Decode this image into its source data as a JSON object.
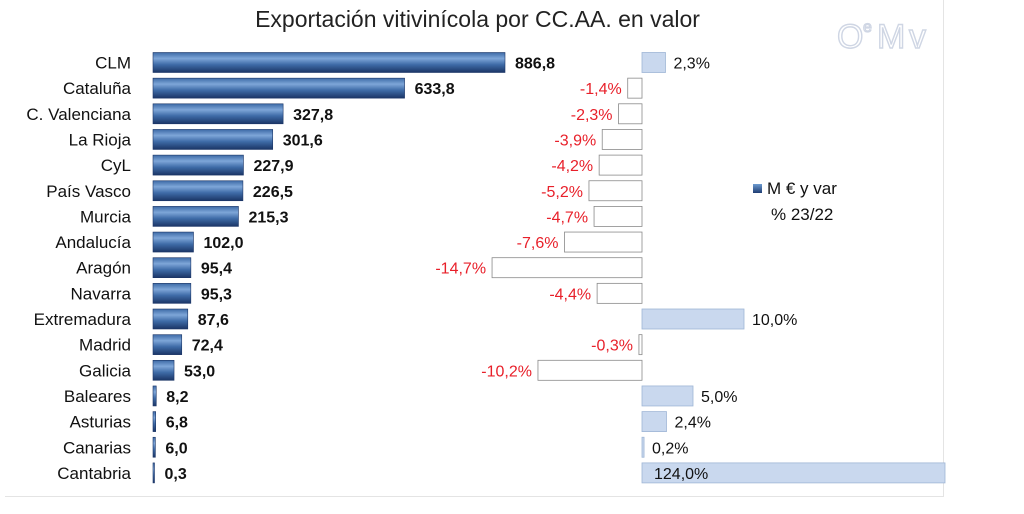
{
  "chart_data": {
    "type": "bar",
    "title": "Exportación vitivinícola por CC.AA. en valor",
    "categories": [
      "CLM",
      "Cataluña",
      "C. Valenciana",
      "La Rioja",
      "CyL",
      "País Vasco",
      "Murcia",
      "Andalucía",
      "Aragón",
      "Navarra",
      "Extremadura",
      "Madrid",
      "Galicia",
      "Baleares",
      "Asturias",
      "Canarias",
      "Cantabria"
    ],
    "series": [
      {
        "values": [
          886.8,
          633.8,
          327.8,
          301.6,
          227.9,
          226.5,
          215.3,
          102.0,
          95.4,
          95.3,
          87.6,
          72.4,
          53.0,
          8.2,
          6.8,
          6.0,
          0.3
        ],
        "labels": [
          "886,8",
          "633,8",
          "327,8",
          "301,6",
          "227,9",
          "226,5",
          "215,3",
          "102,0",
          "95,4",
          "95,3",
          "87,6",
          "72,4",
          "53,0",
          "8,2",
          "6,8",
          "6,0",
          "0,3"
        ]
      },
      {
        "values": [
          2.3,
          -1.4,
          -2.3,
          -3.9,
          -4.2,
          -5.2,
          -4.7,
          -7.6,
          -14.7,
          -4.4,
          10.0,
          -0.3,
          -10.2,
          5.0,
          2.4,
          0.2,
          124.0
        ],
        "labels": [
          "2,3%",
          "-1,4%",
          "-2,3%",
          "-3,9%",
          "-4,2%",
          "-5,2%",
          "-4,7%",
          "-7,6%",
          "-14,7%",
          "-4,4%",
          "10,0%",
          "-0,3%",
          "-10,2%",
          "5,0%",
          "2,4%",
          "0,2%",
          "124,0%"
        ]
      }
    ],
    "legend": {
      "line1": "M € y var",
      "line2": "% 23/22",
      "position": "right"
    },
    "grid": false,
    "colors": {
      "value_bar": "#2f5d9a",
      "pos_var": "#c9d8ee",
      "neg_var": "#ffffff",
      "neg_text": "#e8202a",
      "text": "#111111"
    }
  },
  "logo_text": "OeMv"
}
